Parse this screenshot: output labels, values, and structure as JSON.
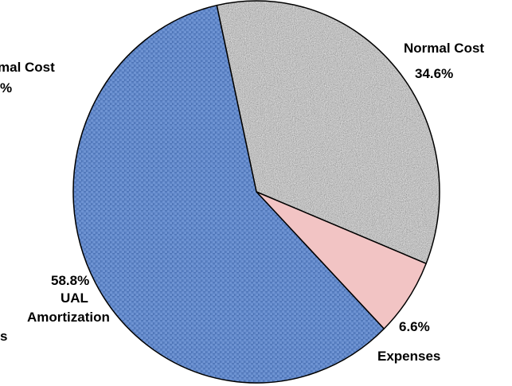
{
  "chart_data": {
    "type": "pie",
    "start_angle_deg": -12.5,
    "slices": [
      {
        "name": "Normal Cost",
        "value": 34.6,
        "value_label": "34.6%",
        "color": "#b3b3b3",
        "pattern": "speckle"
      },
      {
        "name": "Expenses",
        "value": 6.6,
        "value_label": "6.6%",
        "color": "#f2c4c4",
        "pattern": "solid"
      },
      {
        "name": "UAL Amortization",
        "value": 58.8,
        "value_label": "58.8%",
        "color": "#5b82c4",
        "pattern": "weave"
      }
    ],
    "clipped_fragments": [
      "mal Cost",
      "%",
      "s"
    ]
  }
}
